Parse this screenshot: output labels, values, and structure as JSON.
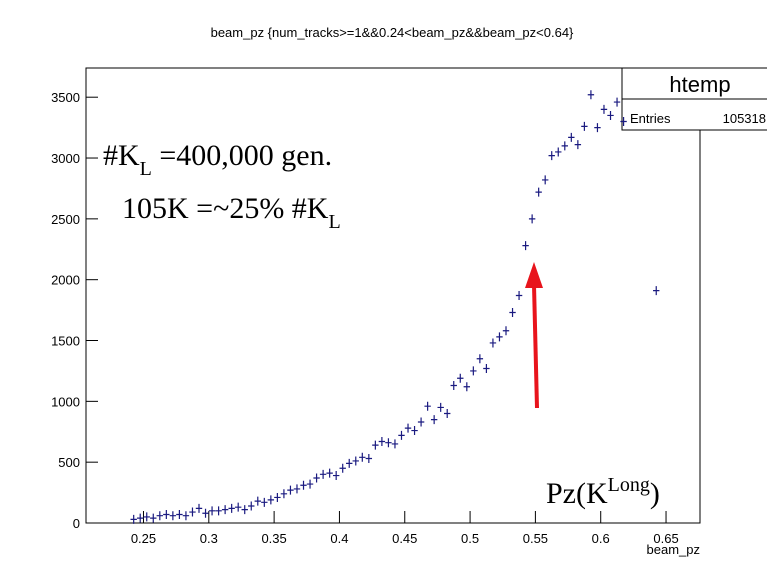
{
  "chart_data": {
    "type": "scatter",
    "title": "beam_pz {num_tracks>=1&&0.24<beam_pz&&beam_pz<0.64}",
    "x_label": "beam_pz",
    "stats": {
      "name": "htemp",
      "entries_label": "Entries",
      "entries": 105318
    },
    "annotations": [
      {
        "parts": [
          "#K",
          "L",
          " =400,000 gen."
        ]
      },
      {
        "parts": [
          "105K =~25% #K",
          "L"
        ]
      },
      {
        "parts": [
          "Pz(K",
          "Long",
          ")"
        ]
      }
    ],
    "color": "#1a1a80",
    "x": [
      0.2425,
      0.2475,
      0.2525,
      0.2575,
      0.2625,
      0.2675,
      0.2725,
      0.2775,
      0.2825,
      0.2875,
      0.2925,
      0.2975,
      0.3025,
      0.3075,
      0.3125,
      0.3175,
      0.3225,
      0.3275,
      0.3325,
      0.3375,
      0.3425,
      0.3475,
      0.3525,
      0.3575,
      0.3625,
      0.3675,
      0.3725,
      0.3775,
      0.3825,
      0.3875,
      0.3925,
      0.3975,
      0.4025,
      0.4075,
      0.4125,
      0.4175,
      0.4225,
      0.4275,
      0.4325,
      0.4375,
      0.4425,
      0.4475,
      0.4525,
      0.4575,
      0.4625,
      0.4675,
      0.4725,
      0.4775,
      0.4825,
      0.4875,
      0.4925,
      0.4975,
      0.5025,
      0.5075,
      0.5125,
      0.5175,
      0.5225,
      0.5275,
      0.5325,
      0.5375,
      0.5425,
      0.5475,
      0.5525,
      0.5575,
      0.5625,
      0.5675,
      0.5725,
      0.5775,
      0.5825,
      0.5875,
      0.5925,
      0.5975,
      0.6025,
      0.6075,
      0.6125,
      0.6175,
      0.6425
    ],
    "values": [
      30,
      40,
      50,
      40,
      60,
      70,
      60,
      70,
      60,
      90,
      120,
      80,
      100,
      100,
      110,
      120,
      130,
      110,
      140,
      180,
      170,
      190,
      210,
      240,
      270,
      280,
      310,
      320,
      370,
      400,
      410,
      390,
      450,
      490,
      510,
      540,
      530,
      640,
      670,
      660,
      650,
      720,
      780,
      760,
      830,
      960,
      850,
      950,
      900,
      1130,
      1190,
      1120,
      1250,
      1350,
      1270,
      1480,
      1530,
      1580,
      1730,
      1870,
      2280,
      2500,
      2720,
      2820,
      3020,
      3050,
      3100,
      3170,
      3110,
      3260,
      3520,
      3250,
      3400,
      3350,
      3460,
      3300,
      1910
    ],
    "xlim": [
      0.206,
      0.676
    ],
    "ylim": [
      0,
      3740
    ],
    "xticks": [
      0.25,
      0.3,
      0.35,
      0.4,
      0.45,
      0.5,
      0.55,
      0.6,
      0.65
    ],
    "yticks": [
      0,
      500,
      1000,
      1500,
      2000,
      2500,
      3000,
      3500
    ]
  }
}
